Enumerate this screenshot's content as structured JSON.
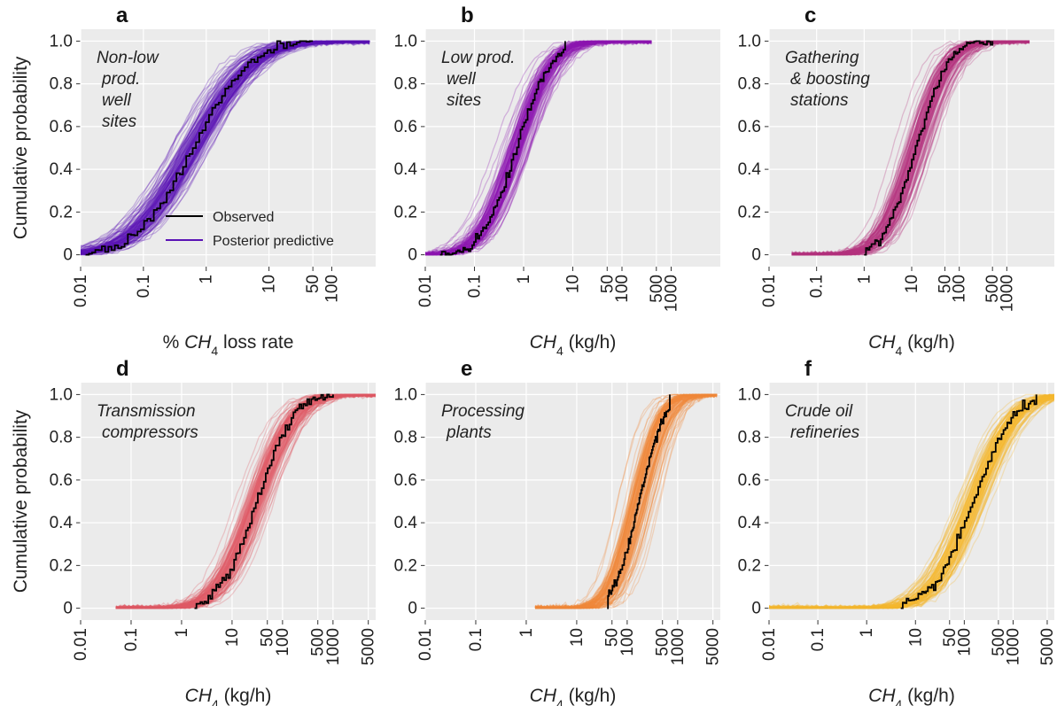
{
  "figure": {
    "ylabel": "Cumulative probability",
    "legend": {
      "observed": "Observed",
      "posterior": "Posterior predictive",
      "observed_color": "#000000",
      "posterior_color": "#5a12b5"
    }
  },
  "chart_data": [
    {
      "type": "line",
      "letter": "a",
      "description": [
        "Non-low",
        "prod.",
        "well",
        "sites"
      ],
      "xlabel_parts": [
        "% ",
        "CH",
        "4",
        " loss rate"
      ],
      "xscale": "log",
      "xlim": [
        0.01,
        500
      ],
      "xticks": [
        "0.01",
        "0.1",
        "1",
        "10",
        "50",
        "100"
      ],
      "yticks": [
        "0",
        "0.2",
        "0.4",
        "0.6",
        "0.8",
        "1.0"
      ],
      "ylim": [
        0,
        1
      ],
      "color": "#5a12b5",
      "median": 0.6,
      "sigma": 1.75,
      "obs_min": 0.012,
      "obs_max": 50,
      "ens_min": 0.003,
      "ens_max": 400,
      "legend_placement": "lower-right"
    },
    {
      "type": "line",
      "letter": "b",
      "description": [
        "Low prod.",
        "well",
        "sites"
      ],
      "xlabel_parts": [
        "",
        "CH",
        "4",
        " (kg/h)"
      ],
      "xscale": "log",
      "xlim": [
        0.01,
        10000
      ],
      "xticks": [
        "0.01",
        "0.1",
        "1",
        "10",
        "50",
        "100",
        "500",
        "1000"
      ],
      "yticks": [
        "0",
        "0.2",
        "0.4",
        "0.6",
        "0.8",
        "1.0"
      ],
      "ylim": [
        0,
        1
      ],
      "color": "#8c14b0",
      "median": 0.7,
      "sigma": 1.35,
      "obs_min": 0.02,
      "obs_max": 7,
      "ens_min": 0.01,
      "ens_max": 400
    },
    {
      "type": "line",
      "letter": "c",
      "description": [
        "Gathering",
        "& boosting",
        "stations"
      ],
      "xlabel_parts": [
        "",
        "CH",
        "4",
        " (kg/h)"
      ],
      "xscale": "log",
      "xlim": [
        0.01,
        10000
      ],
      "xticks": [
        "0.01",
        "0.1",
        "1",
        "10",
        "50",
        "100",
        "500",
        "1000"
      ],
      "yticks": [
        "0",
        "0.2",
        "0.4",
        "0.6",
        "0.8",
        "1.0"
      ],
      "ylim": [
        0,
        1
      ],
      "color": "#b5327e",
      "median": 12,
      "sigma": 1.3,
      "obs_min": 1,
      "obs_max": 500,
      "ens_min": 0.03,
      "ens_max": 3000
    },
    {
      "type": "line",
      "letter": "d",
      "description": [
        "Transmission",
        "compressors"
      ],
      "xlabel_parts": [
        "",
        "CH",
        "4",
        " (kg/h)"
      ],
      "xscale": "log",
      "xlim": [
        0.01,
        7000
      ],
      "xticks": [
        "0.01",
        "0.1",
        "1",
        "10",
        "50",
        "100",
        "500",
        "1000",
        "5000"
      ],
      "yticks": [
        "0",
        "0.2",
        "0.4",
        "0.6",
        "0.8",
        "1.0"
      ],
      "ylim": [
        0,
        1
      ],
      "color": "#e05a66",
      "median": 30,
      "sigma": 1.4,
      "obs_min": 1.8,
      "obs_max": 1000,
      "ens_min": 0.05,
      "ens_max": 7000
    },
    {
      "type": "line",
      "letter": "e",
      "description": [
        "Processing",
        "plants"
      ],
      "xlabel_parts": [
        "",
        "CH",
        "4",
        " (kg/h)"
      ],
      "xscale": "log",
      "xlim": [
        0.01,
        7000
      ],
      "xticks": [
        "0.01",
        "0.1",
        "1",
        "10",
        "50",
        "100",
        "500",
        "1000",
        "5000"
      ],
      "yticks": [
        "0",
        "0.2",
        "0.4",
        "0.6",
        "0.8",
        "1.0"
      ],
      "ylim": [
        0,
        1
      ],
      "color": "#f0873a",
      "median": 170,
      "sigma": 0.95,
      "obs_min": 40,
      "obs_max": 700,
      "ens_min": 1.5,
      "ens_max": 6000
    },
    {
      "type": "line",
      "letter": "f",
      "description": [
        "Crude oil",
        "refineries"
      ],
      "xlabel_parts": [
        "",
        "CH",
        "4",
        " (kg/h)"
      ],
      "xscale": "log",
      "xlim": [
        0.01,
        7000
      ],
      "xticks": [
        "0.01",
        "0.1",
        "1",
        "10",
        "50",
        "100",
        "500",
        "1000",
        "5000"
      ],
      "yticks": [
        "0",
        "0.2",
        "0.4",
        "0.6",
        "0.8",
        "1.0"
      ],
      "ylim": [
        0,
        1
      ],
      "color": "#f5b82e",
      "median": 150,
      "sigma": 1.6,
      "obs_min": 5,
      "obs_max": 3000,
      "ens_min": 0.01,
      "ens_max": 7000
    }
  ]
}
